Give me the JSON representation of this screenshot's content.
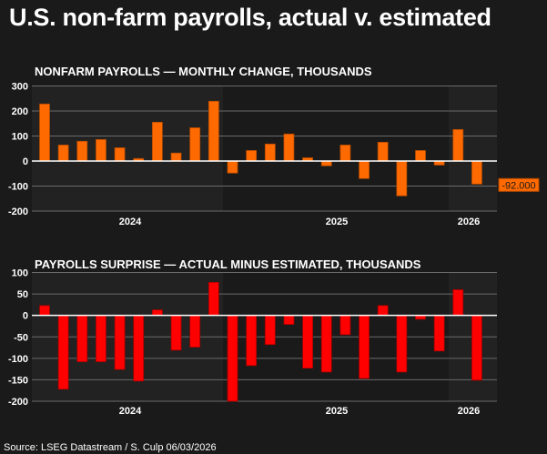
{
  "title": "U.S. non-farm payrolls, actual v. estimated",
  "source": "Source: LSEG Datastream / S. Culp 06/03/2026",
  "colors": {
    "background": "#1a1a1a",
    "shade": "#222222",
    "payrolls": "#ff6a00",
    "surprise": "#ff0000",
    "grid": "#6a6a6a",
    "zero": "#ffffff"
  },
  "chart_data": [
    {
      "type": "bar",
      "title": "NONFARM PAYROLLS — MONTHLY CHANGE, THOUSANDS",
      "x": [
        "2024-03",
        "2024-04",
        "2024-05",
        "2024-06",
        "2024-07",
        "2024-08",
        "2024-09",
        "2024-10",
        "2024-11",
        "2024-12",
        "2025-01",
        "2025-02",
        "2025-03",
        "2025-04",
        "2025-05",
        "2025-06",
        "2025-07",
        "2025-08",
        "2025-09",
        "2025-10",
        "2025-11",
        "2025-12",
        "2026-01",
        "2026-02"
      ],
      "values": [
        228,
        64,
        79,
        86,
        53,
        10,
        155,
        32,
        133,
        239,
        -48,
        42,
        68,
        108,
        13,
        -19,
        64,
        -70,
        75,
        -139,
        42,
        -16,
        126,
        -92
      ],
      "ylim": [
        -200,
        300
      ],
      "yticks": [
        "300",
        "200",
        "100",
        "0",
        "-100",
        "-200"
      ],
      "year_labels": [
        "2024",
        "2025",
        "2026"
      ],
      "last_value_label": "-92.000",
      "grid": true,
      "color": "#ff6a00"
    },
    {
      "type": "bar",
      "title": "PAYROLLS SURPRISE — ACTUAL MINUS ESTIMATED, THOUSANDS",
      "x": [
        "2024-03",
        "2024-04",
        "2024-05",
        "2024-06",
        "2024-07",
        "2024-08",
        "2024-09",
        "2024-10",
        "2024-11",
        "2024-12",
        "2025-01",
        "2025-02",
        "2025-03",
        "2025-04",
        "2025-05",
        "2025-06",
        "2025-07",
        "2025-08",
        "2025-09",
        "2025-10",
        "2025-11",
        "2025-12",
        "2026-01",
        "2026-02"
      ],
      "values": [
        23,
        -172,
        -108,
        -108,
        -126,
        -153,
        13,
        -81,
        -74,
        77,
        -200,
        -117,
        -68,
        -21,
        -123,
        -132,
        -45,
        -147,
        23,
        -132,
        -9,
        -83,
        60,
        -151
      ],
      "ylim": [
        -200,
        100
      ],
      "yticks": [
        "100",
        "50",
        "0",
        "-50",
        "-100",
        "-150",
        "-200"
      ],
      "year_labels": [
        "2024",
        "2025",
        "2026"
      ],
      "grid": true,
      "color": "#ff0000"
    }
  ]
}
